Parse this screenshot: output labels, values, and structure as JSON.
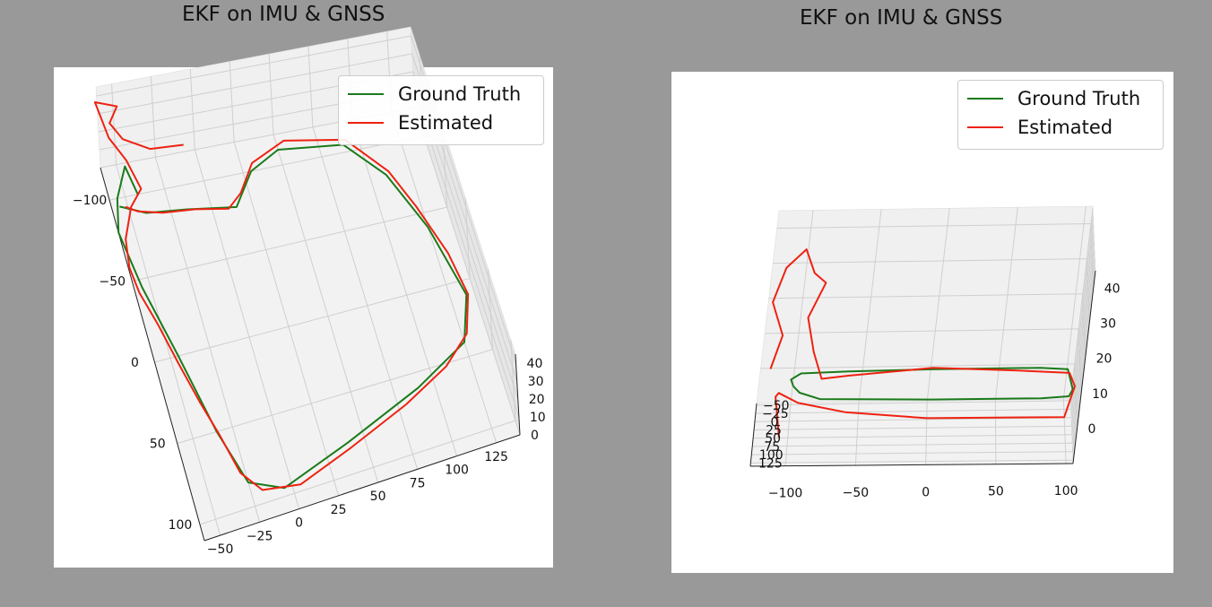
{
  "chart_data": [
    {
      "type": "line",
      "projection": "3d",
      "title": "EKF on IMU & GNSS",
      "legend": {
        "placement": "top-right",
        "entries": [
          "Ground Truth",
          "Estimated"
        ]
      },
      "grid": true,
      "x_ticks": [
        "−50",
        "−25",
        "0",
        "25",
        "50",
        "75",
        "100",
        "125"
      ],
      "y_ticks": [
        "−100",
        "−50",
        "0",
        "50",
        "100"
      ],
      "z_ticks": [
        "0",
        "10",
        "20",
        "30",
        "40"
      ],
      "xlim": [
        -60,
        140
      ],
      "ylim": [
        -120,
        110
      ],
      "zlim": [
        0,
        45
      ],
      "series": [
        {
          "name": "Ground Truth",
          "color": "#1a7a1a",
          "points": [
            [
              -42,
              -100,
              0
            ],
            [
              -45,
              -118,
              0
            ],
            [
              -55,
              -100,
              0
            ],
            [
              -60,
              -80,
              0
            ],
            [
              -55,
              -45,
              0
            ],
            [
              -45,
              0,
              0
            ],
            [
              -35,
              50,
              0
            ],
            [
              -25,
              85,
              0
            ],
            [
              -5,
              95,
              0
            ],
            [
              40,
              80,
              0
            ],
            [
              90,
              60,
              0
            ],
            [
              125,
              40,
              0
            ],
            [
              135,
              10,
              0
            ],
            [
              125,
              -40,
              0
            ],
            [
              110,
              -80,
              0
            ],
            [
              90,
              -105,
              0
            ],
            [
              50,
              -110,
              0
            ],
            [
              30,
              -100,
              0
            ],
            [
              15,
              -80,
              0
            ],
            [
              -15,
              -85,
              0
            ],
            [
              -40,
              -88,
              0
            ],
            [
              -55,
              -95,
              0
            ]
          ]
        },
        {
          "name": "Estimated",
          "color": "#ee2211",
          "points": [
            [
              -15,
              -85,
              36
            ],
            [
              -35,
              -90,
              33
            ],
            [
              -50,
              -98,
              34
            ],
            [
              -55,
              -110,
              33
            ],
            [
              -48,
              -118,
              34
            ],
            [
              -60,
              -125,
              32
            ],
            [
              -56,
              -110,
              25
            ],
            [
              -48,
              -100,
              20
            ],
            [
              -42,
              -90,
              12
            ],
            [
              -50,
              -85,
              8
            ],
            [
              -58,
              -70,
              5
            ],
            [
              -60,
              -55,
              3
            ],
            [
              -58,
              -40,
              2
            ],
            [
              -52,
              -20,
              1
            ],
            [
              -46,
              5,
              0
            ],
            [
              -40,
              30,
              0
            ],
            [
              -34,
              52,
              0
            ],
            [
              -28,
              78,
              0
            ],
            [
              -18,
              92,
              0
            ],
            [
              5,
              96,
              0
            ],
            [
              40,
              84,
              0
            ],
            [
              80,
              68,
              0
            ],
            [
              110,
              52,
              0
            ],
            [
              128,
              35,
              0
            ],
            [
              136,
              10,
              0
            ],
            [
              132,
              -20,
              0
            ],
            [
              122,
              -55,
              0
            ],
            [
              112,
              -82,
              0
            ],
            [
              92,
              -108,
              0
            ],
            [
              55,
              -115,
              0
            ],
            [
              32,
              -105,
              0
            ],
            [
              20,
              -88,
              0
            ],
            [
              10,
              -80,
              0
            ],
            [
              -10,
              -84,
              0
            ],
            [
              -30,
              -86,
              0
            ],
            [
              -45,
              -90,
              0
            ],
            [
              -52,
              -92,
              2
            ]
          ]
        }
      ]
    },
    {
      "type": "line",
      "projection": "3d",
      "title": "EKF on IMU & GNSS",
      "legend": {
        "placement": "top-right",
        "entries": [
          "Ground Truth",
          "Estimated"
        ]
      },
      "grid": true,
      "x_ticks": [
        "−100",
        "−50",
        "0",
        "50",
        "100"
      ],
      "y_ticks": [
        "−50",
        "−25",
        "0",
        "25",
        "50",
        "75",
        "100",
        "125"
      ],
      "z_ticks": [
        "0",
        "10",
        "20",
        "30",
        "40"
      ],
      "xlim": [
        -125,
        105
      ],
      "ylim": [
        -55,
        135
      ],
      "zlim": [
        -10,
        45
      ],
      "series": [
        {
          "name": "Ground Truth",
          "color": "#1a7a1a",
          "points": [
            [
              -100,
              0,
              0
            ],
            [
              -95,
              20,
              0
            ],
            [
              -80,
              40,
              0
            ],
            [
              0,
              45,
              0
            ],
            [
              80,
              45,
              0
            ],
            [
              100,
              40,
              0
            ],
            [
              103,
              20,
              0
            ],
            [
              100,
              -40,
              0
            ],
            [
              80,
              -45,
              0
            ],
            [
              0,
              -45,
              0
            ],
            [
              -60,
              -42,
              0
            ],
            [
              -95,
              -38,
              0
            ],
            [
              -102,
              -20,
              0
            ],
            [
              -100,
              0,
              0
            ]
          ]
        },
        {
          "name": "Estimated",
          "color": "#ee2211",
          "points": [
            [
              -118,
              0,
              5
            ],
            [
              -112,
              5,
              15
            ],
            [
              -122,
              10,
              25
            ],
            [
              -115,
              12,
              35
            ],
            [
              -102,
              10,
              40
            ],
            [
              -94,
              8,
              33
            ],
            [
              -85,
              6,
              30
            ],
            [
              -95,
              5,
              20
            ],
            [
              -88,
              3,
              10
            ],
            [
              -80,
              0,
              2
            ],
            [
              -60,
              2,
              3
            ],
            [
              0,
              3,
              5
            ],
            [
              60,
              3,
              4
            ],
            [
              100,
              2,
              3
            ],
            [
              105,
              0,
              -1
            ],
            [
              100,
              -2,
              -10
            ],
            [
              60,
              -3,
              -10
            ],
            [
              0,
              -4,
              -10
            ],
            [
              -60,
              -4,
              -8
            ],
            [
              -95,
              -2,
              -5
            ],
            [
              -110,
              -1,
              -2
            ],
            [
              -112,
              0,
              -3
            ],
            [
              -106,
              -3,
              -15
            ]
          ]
        }
      ]
    }
  ]
}
